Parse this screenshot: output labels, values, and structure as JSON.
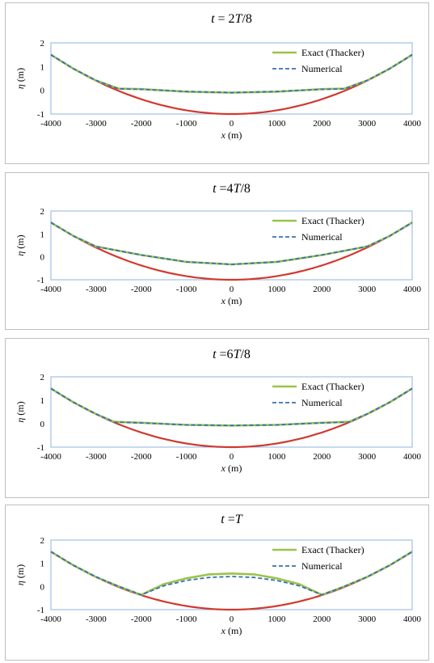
{
  "figure": {
    "legend_exact": "Exact (Thacker)",
    "legend_numerical": "Numerical",
    "xlabel_var": "x",
    "xlabel_unit": " (m)",
    "ylabel_var": "η",
    "ylabel_unit": " (m)"
  },
  "colors": {
    "bathymetry": "#d03a2e",
    "exact": "#9bc34a",
    "numerical": "#3a6fb4",
    "plot_border": "#8db3e2"
  },
  "chart_data": [
    {
      "type": "line",
      "title_prefix": "t",
      "title_eq": " = 2",
      "title_T": "T",
      "title_suffix": "/8",
      "xlabel": "x (m)",
      "ylabel": "η (m)",
      "xlim": [
        -4000,
        4000
      ],
      "ylim": [
        -1,
        2
      ],
      "xticks": [
        "-4000",
        "-3000",
        "-2000",
        "-1000",
        "0",
        "1000",
        "2000",
        "3000",
        "4000"
      ],
      "yticks": [
        "-1",
        "0",
        "1",
        "2"
      ],
      "legend_placement": "top-right",
      "series": [
        {
          "name": "Exact (Thacker)",
          "x": [
            -4000,
            -3500,
            -3000,
            -2500,
            -2000,
            -1000,
            0,
            1000,
            2000,
            2500,
            3000,
            3500,
            4000
          ],
          "y": [
            1.5,
            0.91,
            0.41,
            0.07,
            0.05,
            -0.06,
            -0.1,
            -0.06,
            0.05,
            0.07,
            0.41,
            0.91,
            1.5
          ]
        },
        {
          "name": "Numerical",
          "x": [
            -4000,
            -3500,
            -3000,
            -2500,
            -2000,
            -1000,
            0,
            1000,
            2000,
            2500,
            3000,
            3500,
            4000
          ],
          "y": [
            1.5,
            0.91,
            0.41,
            0.06,
            0.04,
            -0.05,
            -0.1,
            -0.05,
            0.04,
            0.06,
            0.41,
            0.91,
            1.5
          ]
        }
      ]
    },
    {
      "type": "line",
      "title_prefix": "t",
      "title_eq": " =4",
      "title_T": "T",
      "title_suffix": "/8",
      "xlabel": "x (m)",
      "ylabel": "η (m)",
      "xlim": [
        -4000,
        4000
      ],
      "ylim": [
        -1,
        2
      ],
      "xticks": [
        "-4000",
        "-3000",
        "-2000",
        "-1000",
        "0",
        "1000",
        "2000",
        "3000",
        "4000"
      ],
      "yticks": [
        "-1",
        "0",
        "1",
        "2"
      ],
      "legend_placement": "top-right",
      "series": [
        {
          "name": "Exact (Thacker)",
          "x": [
            -4000,
            -3500,
            -3000,
            -2000,
            -1000,
            0,
            1000,
            2000,
            3000,
            3500,
            4000
          ],
          "y": [
            1.5,
            0.91,
            0.45,
            0.08,
            -0.22,
            -0.33,
            -0.22,
            0.08,
            0.45,
            0.91,
            1.5
          ]
        },
        {
          "name": "Numerical",
          "x": [
            -4000,
            -3500,
            -3000,
            -2000,
            -1000,
            0,
            1000,
            2000,
            3000,
            3500,
            4000
          ],
          "y": [
            1.5,
            0.91,
            0.45,
            0.08,
            -0.22,
            -0.33,
            -0.22,
            0.08,
            0.45,
            0.91,
            1.5
          ]
        }
      ]
    },
    {
      "type": "line",
      "title_prefix": "t",
      "title_eq": " =6",
      "title_T": "T",
      "title_suffix": "/8",
      "xlabel": "x (m)",
      "ylabel": "η (m)",
      "xlim": [
        -4000,
        4000
      ],
      "ylim": [
        -1,
        2
      ],
      "xticks": [
        "-4000",
        "-3000",
        "-2000",
        "-1000",
        "0",
        "1000",
        "2000",
        "3000",
        "4000"
      ],
      "yticks": [
        "-1",
        "0",
        "1",
        "2"
      ],
      "legend_placement": "top-right",
      "series": [
        {
          "name": "Exact (Thacker)",
          "x": [
            -4000,
            -3500,
            -3000,
            -2600,
            -2000,
            -1000,
            0,
            1000,
            2000,
            2600,
            3000,
            3500,
            4000
          ],
          "y": [
            1.5,
            0.91,
            0.41,
            0.08,
            0.04,
            -0.05,
            -0.08,
            -0.05,
            0.04,
            0.08,
            0.41,
            0.91,
            1.5
          ]
        },
        {
          "name": "Numerical",
          "x": [
            -4000,
            -3500,
            -3000,
            -2600,
            -2000,
            -1000,
            0,
            1000,
            2000,
            2600,
            3000,
            3500,
            4000
          ],
          "y": [
            1.5,
            0.91,
            0.41,
            0.07,
            0.03,
            -0.05,
            -0.08,
            -0.05,
            0.03,
            0.07,
            0.41,
            0.91,
            1.5
          ]
        }
      ]
    },
    {
      "type": "line",
      "title_prefix": "t",
      "title_eq": " =",
      "title_T": "T",
      "title_suffix": "",
      "xlabel": "x (m)",
      "ylabel": "η (m)",
      "xlim": [
        -4000,
        4000
      ],
      "ylim": [
        -1,
        2
      ],
      "xticks": [
        "-4000",
        "-3000",
        "-2000",
        "-1000",
        "0",
        "1000",
        "2000",
        "3000",
        "4000"
      ],
      "yticks": [
        "-1",
        "0",
        "1",
        "2"
      ],
      "legend_placement": "top-right",
      "series": [
        {
          "name": "Exact (Thacker)",
          "x": [
            -4000,
            -3500,
            -3000,
            -2500,
            -2000,
            -1500,
            -1000,
            -500,
            0,
            500,
            1000,
            1500,
            2000,
            2500,
            3000,
            3500,
            4000
          ],
          "y": [
            1.5,
            0.91,
            0.41,
            0.0,
            -0.36,
            0.1,
            0.35,
            0.52,
            0.56,
            0.52,
            0.35,
            0.1,
            -0.36,
            0.0,
            0.41,
            0.91,
            1.5
          ]
        },
        {
          "name": "Numerical",
          "x": [
            -4000,
            -3500,
            -3000,
            -2500,
            -2000,
            -1500,
            -1000,
            -500,
            0,
            500,
            1000,
            1500,
            2000,
            2500,
            3000,
            3500,
            4000
          ],
          "y": [
            1.5,
            0.91,
            0.41,
            0.0,
            -0.36,
            0.03,
            0.26,
            0.39,
            0.43,
            0.39,
            0.26,
            0.03,
            -0.36,
            0.0,
            0.41,
            0.91,
            1.5
          ]
        }
      ]
    }
  ]
}
